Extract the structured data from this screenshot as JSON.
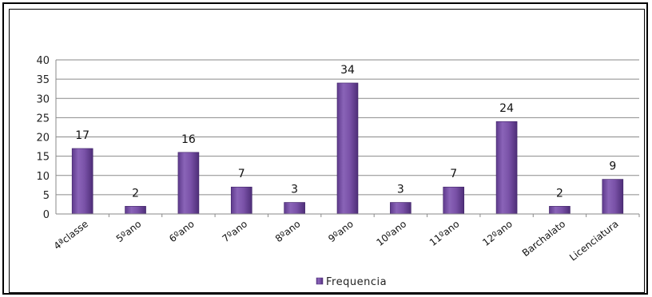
{
  "chart_data": {
    "type": "bar",
    "categories": [
      "4ªclasse",
      "5ºano",
      "6ºano",
      "7ºano",
      "8ºano",
      "9ºano",
      "10ºano",
      "11ºano",
      "12ºano",
      "Barchalato",
      "Licenciatura"
    ],
    "series": [
      {
        "name": "Frequencia",
        "values": [
          17,
          2,
          16,
          7,
          3,
          34,
          3,
          7,
          24,
          2,
          9
        ]
      }
    ],
    "ylim": [
      0,
      40
    ],
    "yticks": [
      0,
      5,
      10,
      15,
      20,
      25,
      30,
      35,
      40
    ],
    "grid": true,
    "legend_position": "bottom",
    "bar_color": "#7a52a8"
  }
}
